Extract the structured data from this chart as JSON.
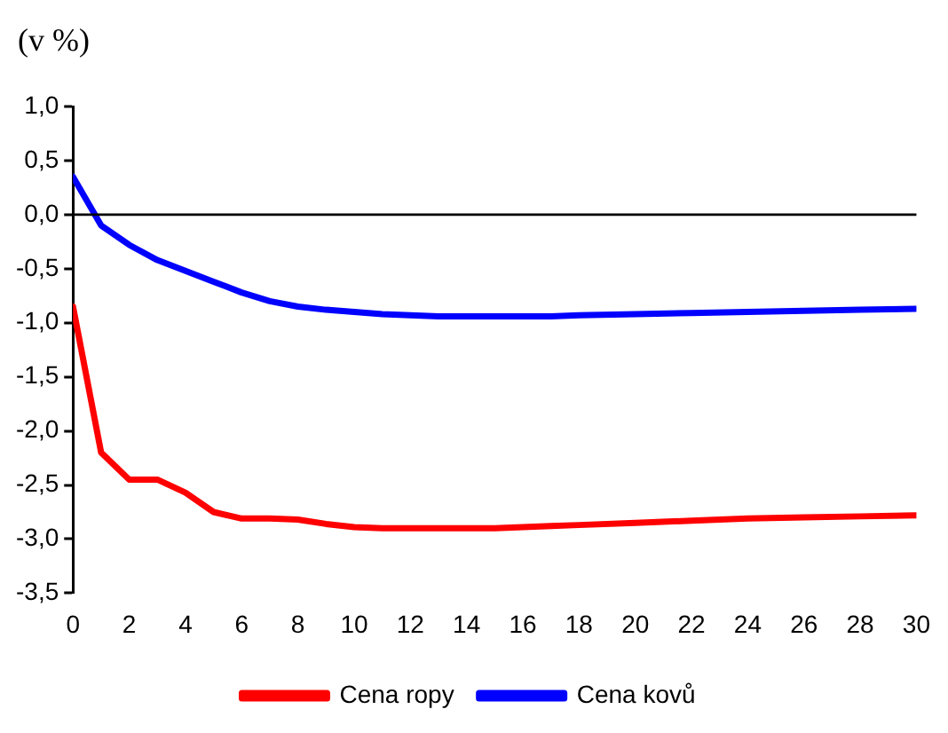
{
  "chart_data": {
    "type": "line",
    "ylabel": "(v %)",
    "x": [
      0,
      1,
      2,
      3,
      4,
      5,
      6,
      7,
      8,
      9,
      10,
      11,
      12,
      13,
      14,
      15,
      16,
      17,
      18,
      20,
      22,
      24,
      26,
      28,
      30
    ],
    "series": [
      {
        "name": "Cena ropy",
        "color": "#ff0000",
        "values": [
          -0.85,
          -2.2,
          -2.45,
          -2.45,
          -2.57,
          -2.75,
          -2.81,
          -2.81,
          -2.82,
          -2.86,
          -2.89,
          -2.9,
          -2.9,
          -2.9,
          -2.9,
          -2.9,
          -2.89,
          -2.88,
          -2.87,
          -2.85,
          -2.83,
          -2.81,
          -2.8,
          -2.79,
          -2.78
        ]
      },
      {
        "name": "Cena kovů",
        "color": "#0000ff",
        "values": [
          0.35,
          -0.1,
          -0.28,
          -0.42,
          -0.52,
          -0.62,
          -0.72,
          -0.8,
          -0.85,
          -0.88,
          -0.9,
          -0.92,
          -0.93,
          -0.94,
          -0.94,
          -0.94,
          -0.94,
          -0.94,
          -0.93,
          -0.92,
          -0.91,
          -0.9,
          -0.89,
          -0.88,
          -0.87
        ]
      }
    ],
    "xlim": [
      0,
      30
    ],
    "xticks": [
      0,
      2,
      4,
      6,
      8,
      10,
      12,
      14,
      16,
      18,
      20,
      22,
      24,
      26,
      28,
      30
    ],
    "ylim": [
      -3.5,
      1.0
    ],
    "yticks": [
      {
        "value": -3.5,
        "label": "-3,5"
      },
      {
        "value": -3,
        "label": "-3,0"
      },
      {
        "value": -2.5,
        "label": "-2,5"
      },
      {
        "value": -2,
        "label": "-2,0"
      },
      {
        "value": -1.5,
        "label": "-1,5"
      },
      {
        "value": -1,
        "label": "-1,0"
      },
      {
        "value": -0.5,
        "label": "-0,5"
      },
      {
        "value": 0,
        "label": "0,0"
      },
      {
        "value": 0.5,
        "label": "0,5"
      },
      {
        "value": 1,
        "label": "1,0"
      }
    ],
    "ref_lines": [
      {
        "axis": "y",
        "value": 0,
        "color": "#000000"
      }
    ],
    "grid": false,
    "legend": "bottom",
    "marker": "none",
    "line_style": "solid"
  }
}
